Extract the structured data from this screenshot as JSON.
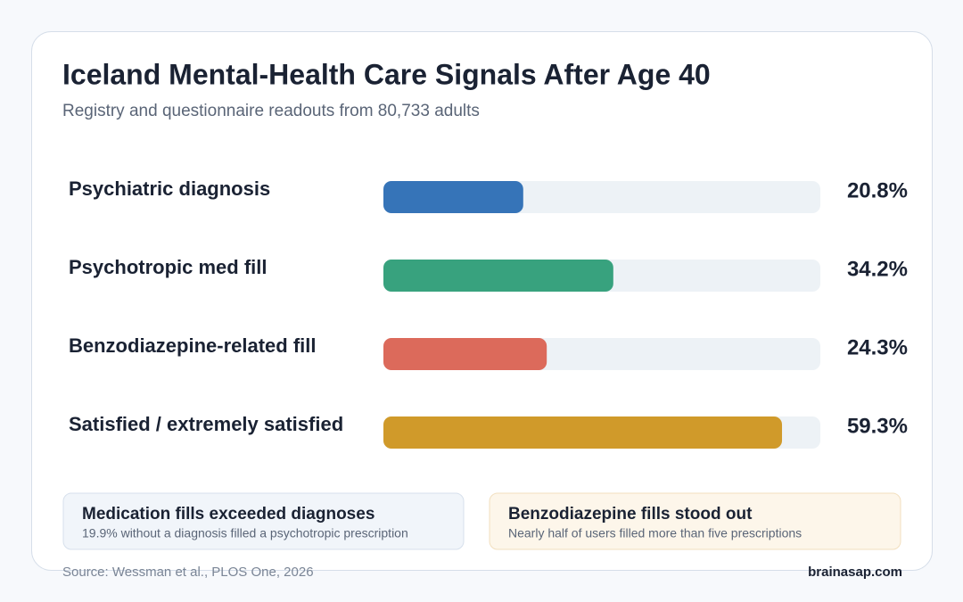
{
  "chart_data": {
    "type": "hbar",
    "title": "Iceland Mental-Health Care Signals After Age 40",
    "subtitle": "Registry and questionnaire readouts from 80,733 adults",
    "categories": [
      "Psychiatric diagnosis",
      "Psychotropic med fill",
      "Benzodiazepine-related fill",
      "Satisfied / extremely satisfied"
    ],
    "values": [
      20.8,
      34.2,
      24.3,
      59.3
    ],
    "value_labels": [
      "20.8%",
      "34.2%",
      "24.3%",
      "59.3%"
    ],
    "colors": [
      "#3674b8",
      "#38a27e",
      "#dc6a5b",
      "#d09a2a"
    ],
    "xlim": [
      0,
      65
    ]
  },
  "callouts": [
    {
      "title": "Medication fills exceeded diagnoses",
      "text": "19.9% without a diagnosis filled a psychotropic prescription"
    },
    {
      "title": "Benzodiazepine fills stood out",
      "text": "Nearly half of users filled more than five prescriptions"
    }
  ],
  "source": "Source: Wessman et al., PLOS One, 2026",
  "brand": "brainasap.com"
}
